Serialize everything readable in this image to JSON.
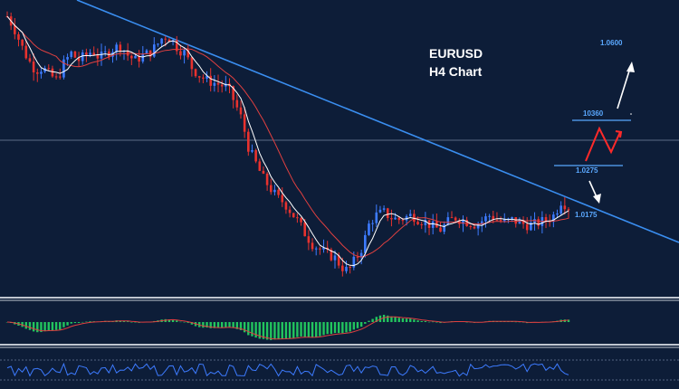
{
  "chart_data": {
    "type": "candlestick",
    "title": "EURUSD",
    "subtitle": "H4 Chart",
    "levels": [
      {
        "label": "1.0600",
        "value": 1.06
      },
      {
        "label": "10360",
        "value": 1.036
      },
      {
        "label": "1.0275",
        "value": 1.0275
      },
      {
        "label": "1.0175",
        "value": 1.0175
      }
    ],
    "price_path": [
      1.114,
      1.109,
      1.102,
      1.096,
      1.092,
      1.093,
      1.09,
      1.088,
      1.095,
      1.099,
      1.096,
      1.098,
      1.1,
      1.097,
      1.099,
      1.101,
      1.102,
      1.098,
      1.096,
      1.098,
      1.099,
      1.102,
      1.106,
      1.105,
      1.101,
      1.099,
      1.093,
      1.09,
      1.088,
      1.087,
      1.086,
      1.085,
      1.079,
      1.072,
      1.06,
      1.054,
      1.048,
      1.044,
      1.04,
      1.038,
      1.034,
      1.03,
      1.025,
      1.021,
      1.019,
      1.017,
      1.016,
      1.012,
      1.01,
      1.015,
      1.02,
      1.03,
      1.033,
      1.034,
      1.032,
      1.031,
      1.032,
      1.033,
      1.031,
      1.03,
      1.028,
      1.027,
      1.03,
      1.032,
      1.031,
      1.03,
      1.029,
      1.031,
      1.033,
      1.031,
      1.03,
      1.031,
      1.03,
      1.029,
      1.029,
      1.03,
      1.031,
      1.033,
      1.039,
      1.036
    ],
    "projection": {
      "from": 1.036,
      "path": [
        1.032,
        1.039,
        1.033,
        1.038
      ]
    },
    "scenarios": [
      {
        "direction": "up",
        "target": 1.06
      },
      {
        "direction": "down",
        "target": 1.0175
      }
    ],
    "colors": {
      "background": "#0d1d38",
      "bull": "#3d7bff",
      "bear": "#e8322e",
      "trendline": "#3a8ef0",
      "ma_fast": "#ffffff",
      "ma_slow": "#e04040",
      "histogram": "#22c55e",
      "level_label": "#5aa8ff",
      "projection": "#ff2a2a",
      "arrow": "#ffffff"
    }
  }
}
